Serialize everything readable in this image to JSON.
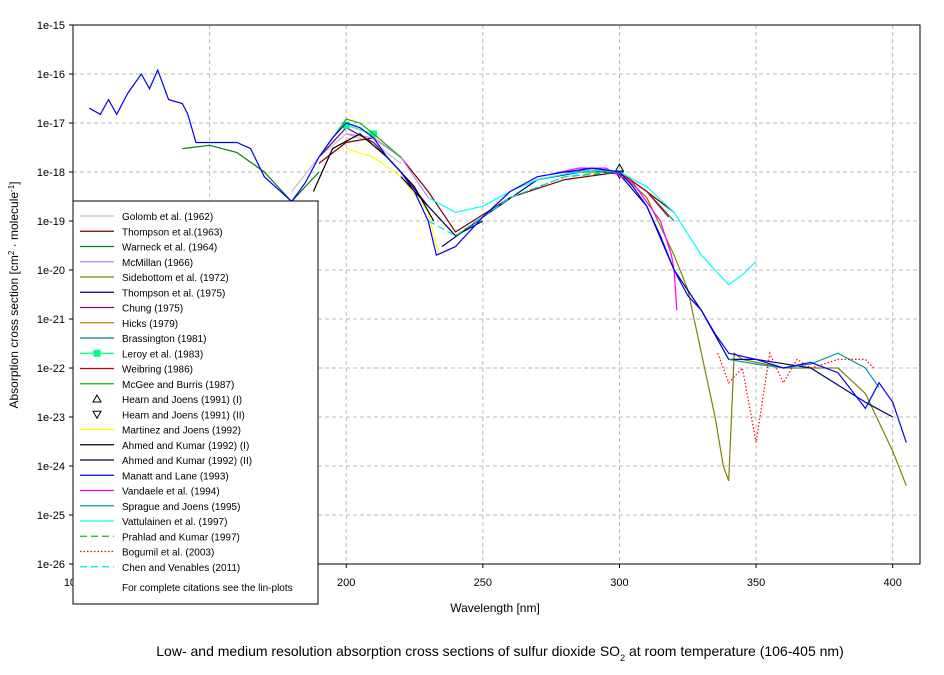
{
  "chart_data": {
    "type": "line",
    "title": [
      "Low- and medium resolution absorption cross sections of sulfur dioxide SO",
      "2",
      " at room temperature (106-405 nm)"
    ],
    "x_label": "Wavelength [nm]",
    "y_label": [
      "Absorption cross section [cm",
      "2",
      " · molecule",
      "-1",
      "]"
    ],
    "y_log": true,
    "grid": true,
    "legend_position": "lower-left",
    "legend_note": "For complete citations see the lin-plots",
    "xlim": [
      100,
      410
    ],
    "xticks": [
      100,
      150,
      200,
      250,
      300,
      350,
      400
    ],
    "ylim": [
      1e-26,
      1e-15
    ],
    "yticks": [
      {
        "value": 1e-26,
        "label": "1e-26"
      },
      {
        "value": 1e-25,
        "label": "1e-25"
      },
      {
        "value": 1e-24,
        "label": "1e-24"
      },
      {
        "value": 1e-23,
        "label": "1e-23"
      },
      {
        "value": 1e-22,
        "label": "1e-22"
      },
      {
        "value": 1e-21,
        "label": "1e-21"
      },
      {
        "value": 1e-20,
        "label": "1e-20"
      },
      {
        "value": 1e-19,
        "label": "1e-19"
      },
      {
        "value": 1e-18,
        "label": "1e-18"
      },
      {
        "value": 1e-17,
        "label": "1e-17"
      },
      {
        "value": 1e-16,
        "label": "1e-16"
      },
      {
        "value": 1e-15,
        "label": "1e-15"
      }
    ],
    "series": [
      {
        "name": "Golomb et al. (1962)",
        "color": "#c0c0c0",
        "x": [
          180,
          190,
          200,
          210,
          220
        ],
        "values": [
          4e-19,
          2e-18,
          6e-18,
          4e-18,
          1.5e-18
        ]
      },
      {
        "name": "Thompson et al.(1963)",
        "color": "#800000",
        "x": [
          190,
          200,
          210,
          220,
          230,
          240,
          260,
          280,
          300,
          310,
          320
        ],
        "values": [
          1.5e-18,
          4e-18,
          5e-18,
          2e-18,
          4e-19,
          6e-20,
          3e-19,
          7e-19,
          1e-18,
          4e-19,
          1.5e-19
        ]
      },
      {
        "name": "Warneck et al. (1964)",
        "color": "#008000",
        "x": [
          140,
          150,
          160,
          170,
          180,
          190
        ],
        "values": [
          3e-18,
          3.5e-18,
          2.5e-18,
          1e-18,
          2.5e-19,
          1e-18
        ]
      },
      {
        "name": "McMillan (1966)",
        "color": "#c080ff",
        "x": [
          200,
          210,
          220,
          230
        ],
        "values": [
          6e-18,
          5e-18,
          2e-18,
          3e-19
        ]
      },
      {
        "name": "Sidebottom et al. (1972)",
        "color": "#808000",
        "x": [
          280,
          300,
          310,
          320,
          325,
          330,
          335,
          338,
          340,
          342,
          345,
          360,
          380,
          390,
          400,
          405
        ],
        "values": [
          1e-18,
          1e-18,
          3e-19,
          2e-20,
          4e-21,
          2e-22,
          1e-23,
          1e-24,
          5e-25,
          2e-22,
          1.5e-22,
          1e-22,
          1e-22,
          3e-23,
          2e-24,
          4e-25
        ]
      },
      {
        "name": "Thompson et al. (1975)",
        "color": "#000080",
        "x": [
          235,
          250,
          270,
          290,
          300,
          310,
          320,
          330,
          340,
          350,
          370,
          390,
          400
        ],
        "values": [
          3e-20,
          1.2e-19,
          7e-19,
          1.1e-18,
          9e-19,
          2e-19,
          1e-20,
          1.5e-21,
          1.5e-22,
          1.5e-22,
          1e-22,
          2e-23,
          1e-23
        ]
      },
      {
        "name": "Chung (1975)",
        "color": "#800080",
        "x": [
          190,
          200,
          210,
          220,
          230
        ],
        "values": [
          2e-18,
          8e-18,
          4e-18,
          1e-18,
          2e-19
        ]
      },
      {
        "name": "Hicks (1979)",
        "color": "#c08000",
        "x": [
          195,
          205,
          215,
          225
        ],
        "values": [
          3e-18,
          6e-18,
          2e-18,
          5e-19
        ]
      },
      {
        "name": "Brassington (1981)",
        "color": "#008080",
        "x": [
          280,
          290,
          300,
          310,
          320
        ],
        "values": [
          9e-19,
          1.2e-18,
          1e-18,
          4e-19,
          1e-19
        ]
      },
      {
        "name": "Leroy et al. (1983)",
        "color": "#00ff80",
        "marker": "square",
        "x": [
          200,
          210
        ],
        "values": [
          9e-18,
          6e-18
        ]
      },
      {
        "name": "Weibring (1986)",
        "color": "#c00000",
        "x": [
          290,
          300,
          310,
          318
        ],
        "values": [
          1.2e-18,
          1e-18,
          4e-19,
          1.2e-19
        ]
      },
      {
        "name": "McGee and Burris (1987)",
        "color": "#00c000",
        "x": [
          190,
          200,
          205,
          210,
          220
        ],
        "values": [
          2e-18,
          1.2e-17,
          1e-17,
          6e-18,
          2e-18
        ]
      },
      {
        "name": "Hearn and Joens (1991) (I)",
        "color": "#000000",
        "marker": "triangle",
        "no_line": true,
        "x": [
          300
        ],
        "values": [
          1.2e-18
        ]
      },
      {
        "name": "Hearn and Joens (1991) (II)",
        "color": "#000000",
        "marker": "triangle-down",
        "no_line": true,
        "x": [
          300
        ],
        "values": [
          9e-19
        ]
      },
      {
        "name": "Martinez and Joens (1992)",
        "color": "#ffff00",
        "x": [
          200,
          210,
          220,
          230,
          234
        ],
        "values": [
          3e-18,
          2e-18,
          8e-19,
          1.5e-19,
          2e-20
        ]
      },
      {
        "name": "Ahmed and Kumar (1992) (I)",
        "color": "#000000",
        "x": [
          188,
          195,
          205,
          215,
          225,
          232
        ],
        "values": [
          4e-19,
          3e-18,
          6e-18,
          2e-18,
          5e-19,
          1e-19
        ]
      },
      {
        "name": "Ahmed and Kumar (1992) (II)",
        "color": "#000040",
        "x": [
          220,
          230,
          240,
          250
        ],
        "values": [
          8e-19,
          2e-19,
          5e-20,
          1e-19
        ]
      },
      {
        "name": "Vandaele et al. (1994)",
        "color": "#ff00ff",
        "x": [
          275,
          285,
          295,
          305,
          315,
          319,
          320,
          321
        ],
        "values": [
          9e-19,
          1.2e-18,
          1.2e-18,
          6e-19,
          1e-19,
          2e-20,
          1e-20,
          1.5e-21
        ]
      },
      {
        "name": "Sprague and Joens (1995)",
        "color": "#00a0a0",
        "x": [
          340,
          350,
          360,
          370,
          380,
          390,
          395
        ],
        "values": [
          1.5e-22,
          1.2e-22,
          1e-22,
          1.2e-22,
          2e-22,
          1e-22,
          4e-23
        ]
      },
      {
        "name": "Vattulainen et al. (1997)",
        "color": "#00ffff",
        "x": [
          230,
          240,
          250,
          260,
          270,
          280,
          290,
          300,
          310,
          320,
          330,
          335,
          340,
          345,
          350
        ],
        "values": [
          3e-19,
          1.5e-19,
          2e-19,
          4e-19,
          7e-19,
          9e-19,
          1.1e-18,
          1e-18,
          5e-19,
          1.5e-19,
          2e-20,
          1e-20,
          5e-21,
          8e-21,
          1.5e-20
        ]
      },
      {
        "name": "Prahlad and Kumar (1997)",
        "color": "#00c000",
        "dash": "dashed",
        "x": [
          240,
          260,
          280,
          300
        ],
        "values": [
          5e-20,
          3e-19,
          8e-19,
          1e-18
        ]
      },
      {
        "name": "Bogumil et al. (2003)",
        "color": "#ff0000",
        "dash": "dotted",
        "x": [
          336,
          340,
          345,
          350,
          355,
          360,
          365,
          370,
          380,
          390,
          393
        ],
        "values": [
          2e-22,
          5e-23,
          1e-22,
          3e-24,
          2e-22,
          5e-23,
          1.5e-22,
          1e-22,
          1.5e-22,
          1.5e-22,
          1e-22
        ]
      },
      {
        "name": "Chen and Venables (2011)",
        "color": "#00e0ff",
        "dash": "dashed",
        "x": [
          230,
          240,
          260,
          280,
          300
        ],
        "values": [
          1e-19,
          5e-20,
          3e-19,
          8e-19,
          1.1e-18
        ]
      },
      {
        "name": "Manatt and Lane (1993)",
        "color": "#0000ff",
        "legend_index": 17,
        "x": [
          106,
          110,
          113,
          116,
          120,
          125,
          128,
          131,
          135,
          140,
          142,
          145,
          150,
          160,
          165,
          170,
          180,
          185,
          190,
          195,
          200,
          205,
          210,
          215,
          220,
          225,
          230,
          233,
          240,
          250,
          260,
          270,
          280,
          290,
          300,
          305,
          310,
          315,
          320,
          325,
          330,
          335,
          340,
          350,
          360,
          370,
          380,
          390,
          395,
          400,
          405
        ],
        "values": [
          2e-17,
          1.5e-17,
          3e-17,
          1.5e-17,
          4e-17,
          1e-16,
          5e-17,
          1.2e-16,
          3e-17,
          2.5e-17,
          1.5e-17,
          4e-18,
          4e-18,
          4e-18,
          3e-18,
          8e-19,
          2.5e-19,
          6e-19,
          2e-18,
          5e-18,
          1e-17,
          8e-18,
          5e-18,
          2e-18,
          1e-18,
          4e-19,
          1e-19,
          2e-20,
          3e-20,
          1.2e-19,
          4e-19,
          8e-19,
          1e-18,
          1.2e-18,
          1e-18,
          5e-19,
          2e-19,
          5e-20,
          1e-20,
          3e-21,
          1.5e-21,
          5e-22,
          2e-22,
          1.5e-22,
          1e-22,
          1.3e-22,
          8e-23,
          1.5e-23,
          5e-23,
          2e-23,
          3e-24
        ]
      }
    ]
  }
}
